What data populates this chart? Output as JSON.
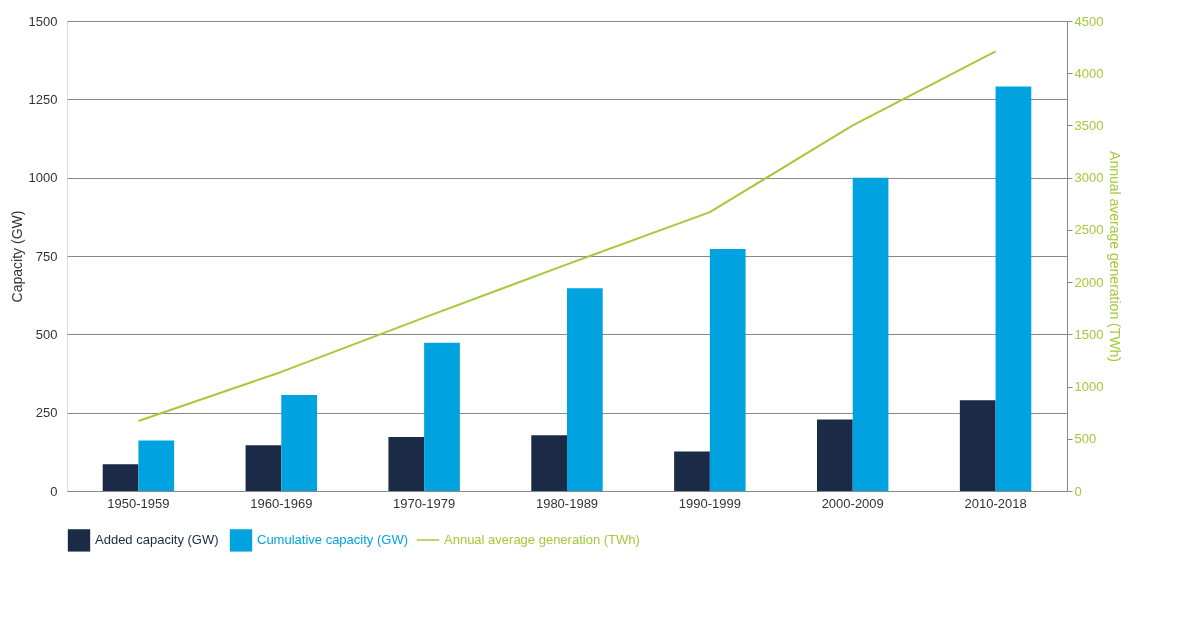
{
  "chart_data": {
    "type": "bar",
    "ylabel": "Capacity (GW)",
    "y2label": "Annual average generation (TWh)",
    "categories": [
      "1950-1959",
      "1960-1969",
      "1970-1979",
      "1980-1989",
      "1990-1999",
      "2000-2009",
      "2010-2018"
    ],
    "series": [
      {
        "name": "Added capacity (GW)",
        "type": "bar",
        "color": "#1b2a47",
        "values": [
          85,
          146,
          172,
          178,
          126,
          228,
          290
        ]
      },
      {
        "name": "Cumulative capacity (GW)",
        "type": "bar",
        "color": "#00a3e0",
        "values": [
          161,
          306,
          473,
          647,
          772,
          1000,
          1291
        ]
      },
      {
        "name": "Annual average generation (TWh)",
        "type": "line",
        "axis": "y2",
        "color": "#a4c93a",
        "values": [
          670,
          1140,
          1660,
          2170,
          2670,
          3500,
          4210
        ]
      }
    ],
    "ylim": [
      0,
      1500
    ],
    "yticks": [
      0,
      250,
      500,
      750,
      1000,
      1250,
      1500
    ],
    "y2lim": [
      0,
      4500
    ],
    "y2ticks": [
      0,
      500,
      1000,
      1500,
      2000,
      2500,
      3000,
      3500,
      4000,
      4500
    ],
    "grid": "y",
    "legend": "bottom"
  }
}
